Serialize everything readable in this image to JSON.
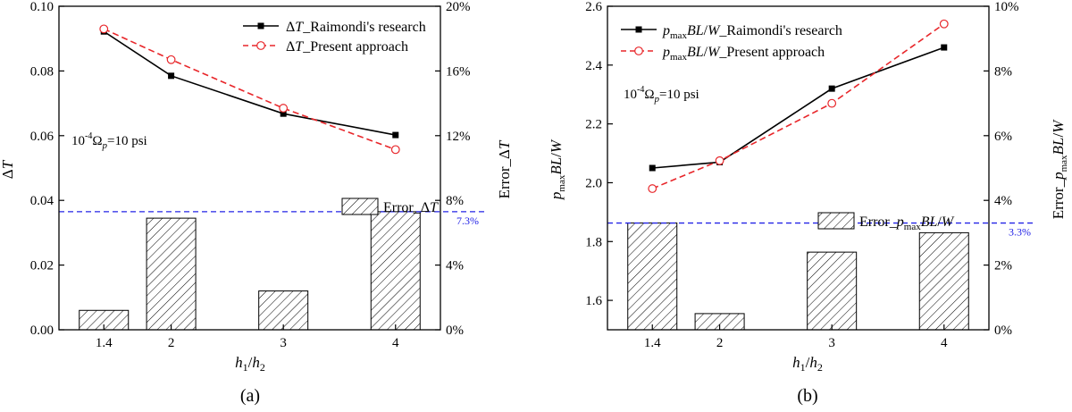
{
  "chart_data": [
    {
      "type": "bar+line",
      "panel_label": "(a)",
      "xlabel": "h1/h2",
      "ylabel": "ΔT",
      "y2label": "Error_ΔT",
      "x_ticks": [
        "1.4",
        "2",
        "3",
        "4"
      ],
      "ylim": [
        0.0,
        0.1
      ],
      "y_ticks": [
        "0.00",
        "0.02",
        "0.04",
        "0.06",
        "0.08",
        "0.10"
      ],
      "y2lim": [
        0,
        20
      ],
      "y2_ticks": [
        "0%",
        "4%",
        "8%",
        "12%",
        "16%",
        "20%"
      ],
      "annotation": "10-4Ωp=10 psi",
      "series": [
        {
          "name": "ΔT_Raimondi's research",
          "style": "solid-square",
          "color": "#000000",
          "x": [
            1.4,
            2,
            3,
            4
          ],
          "values": [
            0.0922,
            0.0785,
            0.0668,
            0.0602
          ]
        },
        {
          "name": "ΔT_Present approach",
          "style": "dashed-circle",
          "color": "#e8262a",
          "x": [
            1.4,
            2,
            3,
            4
          ],
          "values": [
            0.093,
            0.0835,
            0.0685,
            0.0557
          ]
        }
      ],
      "bars": {
        "name": "Error_ΔT",
        "axis": "y2",
        "x": [
          1.4,
          2,
          3,
          4
        ],
        "values": [
          1.2,
          6.9,
          2.4,
          7.3
        ]
      },
      "threshold": {
        "value": 7.3,
        "label": "7.3%",
        "color": "#2323e6"
      }
    },
    {
      "type": "bar+line",
      "panel_label": "(b)",
      "xlabel": "h1/h2",
      "ylabel": "pmaxBL/W",
      "y2label": "Error_pmaxBL/W",
      "x_ticks": [
        "1.4",
        "2",
        "3",
        "4"
      ],
      "ylim": [
        1.5,
        2.6
      ],
      "y_ticks": [
        "1.6",
        "1.8",
        "2.0",
        "2.2",
        "2.4",
        "2.6"
      ],
      "y2lim": [
        0,
        10
      ],
      "y2_ticks": [
        "0%",
        "2%",
        "4%",
        "6%",
        "8%",
        "10%"
      ],
      "annotation": "10-4Ωp=10 psi",
      "series": [
        {
          "name": "pmaxBL/W_Raimondi's research",
          "style": "solid-square",
          "color": "#000000",
          "x": [
            1.4,
            2,
            3,
            4
          ],
          "values": [
            2.05,
            2.07,
            2.32,
            2.46
          ]
        },
        {
          "name": "pmaxBL/W_Present approach",
          "style": "dashed-circle",
          "color": "#e8262a",
          "x": [
            1.4,
            2,
            3,
            4
          ],
          "values": [
            1.98,
            2.075,
            2.27,
            2.54
          ]
        }
      ],
      "bars": {
        "name": "Error_pmaxBL/W",
        "axis": "y2",
        "x": [
          1.4,
          2,
          3,
          4
        ],
        "values": [
          3.3,
          0.5,
          2.4,
          3.0
        ]
      },
      "threshold": {
        "value": 3.3,
        "label": "3.3%",
        "color": "#2323e6"
      }
    }
  ]
}
